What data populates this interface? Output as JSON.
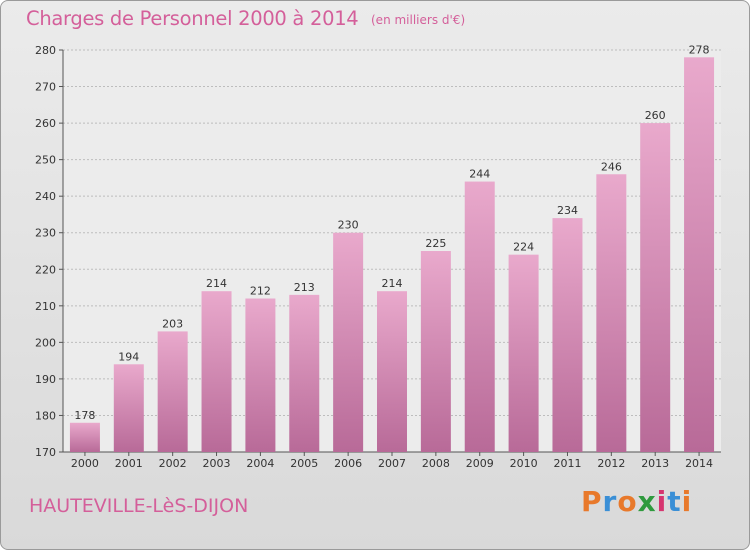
{
  "title": "Charges de Personnel 2000 à 2014",
  "subtitle": "(en milliers d'€)",
  "commune": "HAUTEVILLE-LèS-DIJON",
  "logo": {
    "letters": [
      "P",
      "r",
      "o",
      "x",
      "i",
      "t",
      "i"
    ],
    "colors": [
      "#e8792b",
      "#3a8fd6",
      "#e8792b",
      "#2f9a3e",
      "#d6356f",
      "#3a8fd6",
      "#e8792b"
    ]
  },
  "colors": {
    "bar": "#d47fb0",
    "bar_light": "#e9a9cc",
    "bar_dark": "#b86a98",
    "title": "#d45f9a"
  },
  "chart_data": {
    "type": "bar",
    "categories": [
      "2000",
      "2001",
      "2002",
      "2003",
      "2004",
      "2005",
      "2006",
      "2007",
      "2008",
      "2009",
      "2010",
      "2011",
      "2012",
      "2013",
      "2014"
    ],
    "values": [
      178,
      194,
      203,
      214,
      212,
      213,
      230,
      214,
      225,
      244,
      224,
      234,
      246,
      260,
      278
    ],
    "title": "Charges de Personnel 2000 à 2014",
    "subtitle": "(en milliers d'€)",
    "xlabel": "",
    "ylabel": "",
    "ylim": [
      170,
      280
    ],
    "yticks": [
      170,
      180,
      190,
      200,
      210,
      220,
      230,
      240,
      250,
      260,
      270,
      280
    ],
    "grid": true
  }
}
